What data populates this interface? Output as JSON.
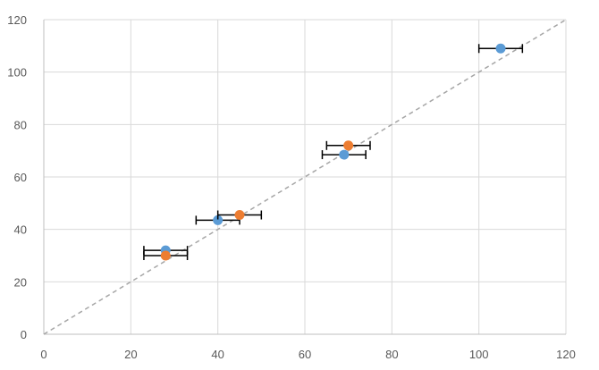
{
  "chart_data": {
    "type": "scatter",
    "title": "",
    "xlabel": "",
    "ylabel": "",
    "xlim": [
      0,
      120
    ],
    "ylim": [
      0,
      120
    ],
    "x_ticks": [
      0,
      20,
      40,
      60,
      80,
      100,
      120
    ],
    "y_ticks": [
      0,
      20,
      40,
      60,
      80,
      100,
      120
    ],
    "grid": true,
    "legend": "none",
    "reference_line": {
      "from": [
        0,
        0
      ],
      "to": [
        120,
        120
      ],
      "style": "dashed",
      "color": "#a6a6a6"
    },
    "series": [
      {
        "color": "#5b9bd5",
        "points": [
          {
            "x": 28,
            "y": 32,
            "x_err": 5
          },
          {
            "x": 40,
            "y": 43.5,
            "x_err": 5
          },
          {
            "x": 69,
            "y": 68.5,
            "x_err": 5
          },
          {
            "x": 105,
            "y": 109,
            "x_err": 5
          }
        ]
      },
      {
        "color": "#ed7d31",
        "points": [
          {
            "x": 28,
            "y": 30,
            "x_err": 5
          },
          {
            "x": 45,
            "y": 45.5,
            "x_err": 5
          },
          {
            "x": 70,
            "y": 72,
            "x_err": 5
          }
        ]
      }
    ]
  }
}
